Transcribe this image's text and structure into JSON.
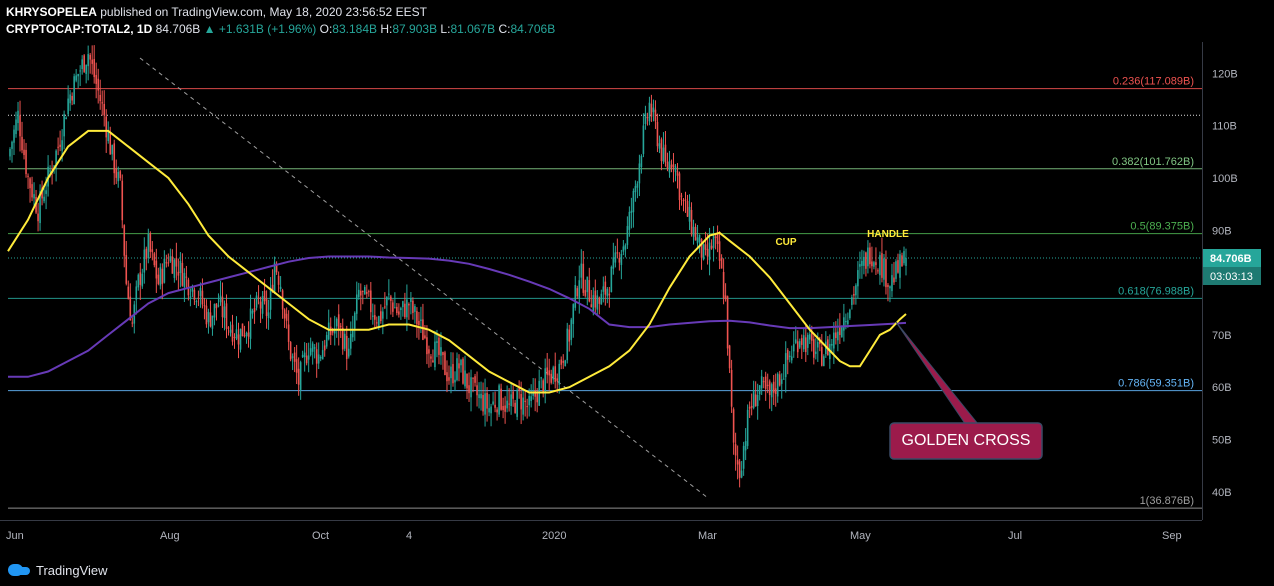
{
  "header": {
    "author": "KHRYSOPELEA",
    "published_text": "published on TradingView.com, May 18, 2020 23:56:52 EEST",
    "symbol": "CRYPTOCAP:TOTAL2, 1D",
    "last": "84.706B",
    "change": "▲ +1.631B (+1.96%)",
    "o_label": "O:",
    "o": "83.184B",
    "h_label": "H:",
    "h": "87.903B",
    "l_label": "L:",
    "l": "81.067B",
    "c_label": "C:",
    "c": "84.706B"
  },
  "footer": {
    "brand": "TradingView"
  },
  "colors": {
    "background": "#000000",
    "up": "#26a69a",
    "down": "#ef5350",
    "ma_short": "#ffeb3b",
    "ma_long": "#673ab7",
    "fib_0236": "#ef5350",
    "fib_0382": "#81c784",
    "fib_05": "#4caf50",
    "fib_0618": "#26a69a",
    "fib_0786": "#64b5f6",
    "annotation": "#9c1b4b"
  },
  "chart_data": {
    "type": "candlestick",
    "x_ticks": [
      "Jun",
      "Aug",
      "Oct",
      "4",
      "2020",
      "Mar",
      "May",
      "Jul",
      "Sep"
    ],
    "y_ticks": [
      "120B",
      "110B",
      "100B",
      "90B",
      "70B",
      "60B",
      "50B",
      "40B"
    ],
    "ylim": [
      35,
      126
    ],
    "y_unit": "B",
    "price_label": "84.706B",
    "countdown_label": "03:03:13",
    "fib_levels": [
      {
        "label": "0.236(117.089B)",
        "value": 117.089,
        "color": "#ef5350"
      },
      {
        "label": "0.382(101.762B)",
        "value": 101.762,
        "color": "#81c784"
      },
      {
        "label": "0.5(89.375B)",
        "value": 89.375,
        "color": "#4caf50"
      },
      {
        "label": "0.618(76.988B)",
        "value": 76.988,
        "color": "#26a69a"
      },
      {
        "label": "0.786(59.351B)",
        "value": 59.351,
        "color": "#64b5f6"
      },
      {
        "label": "1(36.876B)",
        "value": 36.876,
        "color": "#9e9e9e"
      }
    ],
    "dotted_level": 112.0,
    "annotations": {
      "cup": "CUP",
      "handle": "HANDLE",
      "golden_cross": "GOLDEN CROSS"
    },
    "close_path": [
      [
        0,
        104
      ],
      [
        5,
        112
      ],
      [
        10,
        100
      ],
      [
        15,
        94
      ],
      [
        20,
        100
      ],
      [
        25,
        106
      ],
      [
        30,
        115
      ],
      [
        35,
        120
      ],
      [
        40,
        124
      ],
      [
        44,
        118
      ],
      [
        48,
        112
      ],
      [
        52,
        104
      ],
      [
        56,
        98
      ],
      [
        59,
        80
      ],
      [
        62,
        72
      ],
      [
        65,
        80
      ],
      [
        70,
        87
      ],
      [
        75,
        80
      ],
      [
        80,
        85
      ],
      [
        85,
        83
      ],
      [
        90,
        80
      ],
      [
        95,
        78
      ],
      [
        100,
        73
      ],
      [
        105,
        76
      ],
      [
        110,
        72
      ],
      [
        115,
        70
      ],
      [
        120,
        72
      ],
      [
        125,
        76
      ],
      [
        130,
        74
      ],
      [
        133,
        84
      ],
      [
        136,
        80
      ],
      [
        140,
        68
      ],
      [
        145,
        61
      ],
      [
        150,
        68
      ],
      [
        155,
        66
      ],
      [
        160,
        70
      ],
      [
        165,
        72
      ],
      [
        170,
        66
      ],
      [
        175,
        78
      ],
      [
        180,
        76
      ],
      [
        185,
        73
      ],
      [
        190,
        77
      ],
      [
        195,
        74
      ],
      [
        200,
        76
      ],
      [
        205,
        72
      ],
      [
        210,
        68
      ],
      [
        215,
        66
      ],
      [
        220,
        62
      ],
      [
        225,
        64
      ],
      [
        230,
        60
      ],
      [
        235,
        58
      ],
      [
        240,
        56
      ],
      [
        245,
        58
      ],
      [
        250,
        56
      ],
      [
        255,
        58
      ],
      [
        260,
        56
      ],
      [
        265,
        60
      ],
      [
        270,
        62
      ],
      [
        275,
        64
      ],
      [
        280,
        70
      ],
      [
        285,
        82
      ],
      [
        290,
        78
      ],
      [
        295,
        76
      ],
      [
        300,
        80
      ],
      [
        305,
        86
      ],
      [
        308,
        88
      ],
      [
        312,
        96
      ],
      [
        316,
        106
      ],
      [
        320,
        114
      ],
      [
        324,
        108
      ],
      [
        328,
        102
      ],
      [
        332,
        104
      ],
      [
        336,
        96
      ],
      [
        340,
        92
      ],
      [
        344,
        88
      ],
      [
        348,
        84
      ],
      [
        352,
        88
      ],
      [
        355,
        84
      ],
      [
        358,
        76
      ],
      [
        362,
        48
      ],
      [
        365,
        44
      ],
      [
        370,
        56
      ],
      [
        375,
        60
      ],
      [
        380,
        58
      ],
      [
        385,
        62
      ],
      [
        390,
        66
      ],
      [
        395,
        70
      ],
      [
        400,
        68
      ],
      [
        405,
        66
      ],
      [
        410,
        68
      ],
      [
        415,
        72
      ],
      [
        420,
        76
      ],
      [
        425,
        82
      ],
      [
        430,
        86
      ],
      [
        435,
        84
      ],
      [
        440,
        80
      ],
      [
        445,
        83
      ],
      [
        448,
        84.706
      ]
    ],
    "ma_short_values": [
      [
        0,
        86
      ],
      [
        10,
        92
      ],
      [
        20,
        100
      ],
      [
        30,
        106
      ],
      [
        40,
        109
      ],
      [
        50,
        109
      ],
      [
        60,
        106
      ],
      [
        70,
        103
      ],
      [
        80,
        100
      ],
      [
        90,
        95
      ],
      [
        100,
        89
      ],
      [
        110,
        85
      ],
      [
        120,
        82
      ],
      [
        130,
        79
      ],
      [
        140,
        76
      ],
      [
        150,
        73
      ],
      [
        160,
        71
      ],
      [
        170,
        71
      ],
      [
        180,
        71
      ],
      [
        190,
        72
      ],
      [
        200,
        72
      ],
      [
        210,
        71
      ],
      [
        220,
        69
      ],
      [
        230,
        66
      ],
      [
        240,
        63
      ],
      [
        250,
        61
      ],
      [
        260,
        59
      ],
      [
        270,
        59
      ],
      [
        280,
        60
      ],
      [
        290,
        62
      ],
      [
        300,
        64
      ],
      [
        310,
        67
      ],
      [
        320,
        72
      ],
      [
        330,
        79
      ],
      [
        340,
        85
      ],
      [
        350,
        89
      ],
      [
        355,
        89.5
      ],
      [
        360,
        88
      ],
      [
        370,
        85
      ],
      [
        380,
        81
      ],
      [
        390,
        76
      ],
      [
        400,
        71
      ],
      [
        410,
        67
      ],
      [
        415,
        65
      ],
      [
        420,
        64
      ],
      [
        425,
        64
      ],
      [
        430,
        67
      ],
      [
        435,
        70
      ],
      [
        440,
        71
      ],
      [
        445,
        73
      ],
      [
        448,
        74
      ]
    ],
    "ma_long_values": [
      [
        0,
        62
      ],
      [
        10,
        62
      ],
      [
        20,
        63
      ],
      [
        30,
        65
      ],
      [
        40,
        67
      ],
      [
        50,
        70
      ],
      [
        60,
        73
      ],
      [
        70,
        76
      ],
      [
        80,
        78
      ],
      [
        90,
        79
      ],
      [
        100,
        80
      ],
      [
        110,
        81
      ],
      [
        120,
        82
      ],
      [
        130,
        83
      ],
      [
        140,
        84
      ],
      [
        150,
        84.7
      ],
      [
        160,
        85
      ],
      [
        170,
        85
      ],
      [
        180,
        85
      ],
      [
        190,
        84.8
      ],
      [
        200,
        84.7
      ],
      [
        210,
        84.6
      ],
      [
        220,
        84.2
      ],
      [
        230,
        83.6
      ],
      [
        240,
        82.6
      ],
      [
        250,
        81.5
      ],
      [
        260,
        80.2
      ],
      [
        270,
        78.8
      ],
      [
        280,
        77
      ],
      [
        290,
        75
      ],
      [
        300,
        72
      ],
      [
        310,
        71.5
      ],
      [
        320,
        71.5
      ],
      [
        330,
        72
      ],
      [
        340,
        72.3
      ],
      [
        350,
        72.6
      ],
      [
        360,
        72.7
      ],
      [
        370,
        72.4
      ],
      [
        380,
        71.8
      ],
      [
        390,
        71.3
      ],
      [
        400,
        71.3
      ],
      [
        410,
        71.5
      ],
      [
        420,
        71.7
      ],
      [
        430,
        71.9
      ],
      [
        440,
        72.1
      ],
      [
        448,
        72.3
      ]
    ]
  }
}
